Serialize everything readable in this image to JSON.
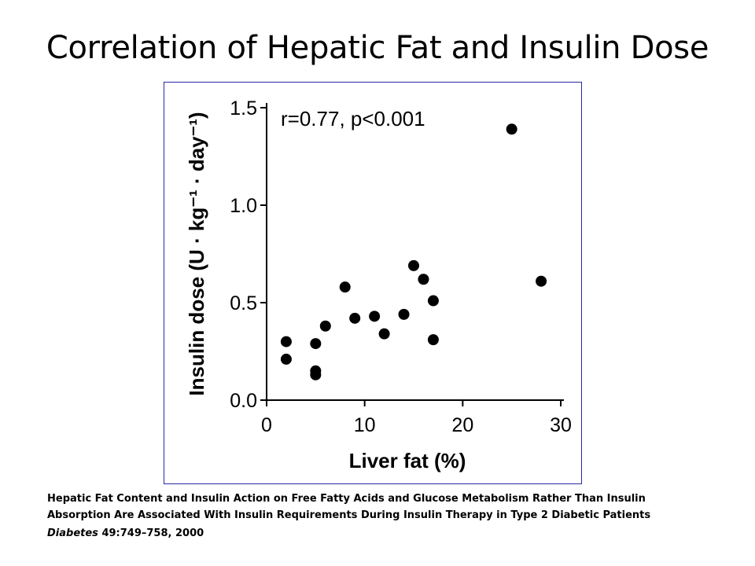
{
  "slide": {
    "title": "Correlation of Hepatic Fat and Insulin Dose"
  },
  "caption": {
    "line1": "Hepatic Fat Content and Insulin Action on Free Fatty Acids and Glucose Metabolism Rather Than Insulin",
    "line2": "Absorption Are Associated With Insulin Requirements During Insulin Therapy in Type 2 Diabetic Patients",
    "journal": "Diabetes",
    "reference": " 49:749–758, 2000"
  },
  "chart_data": {
    "type": "scatter",
    "xlabel": "Liver fat (%)",
    "ylabel": "Insulin dose (U · kg⁻¹ · day⁻¹)",
    "annotation": "r=0.77, p<0.001",
    "xlim": [
      0,
      30
    ],
    "ylim": [
      0,
      1.5
    ],
    "xticks": [
      0,
      10,
      20,
      30
    ],
    "xtick_labels": [
      "0",
      "10",
      "20",
      "30"
    ],
    "yticks": [
      0,
      0.5,
      1.0,
      1.5
    ],
    "ytick_labels": [
      "0.0",
      "0.5",
      "1.0",
      "1.5"
    ],
    "grid": false,
    "points": [
      {
        "x": 2,
        "y": 0.3
      },
      {
        "x": 2,
        "y": 0.21
      },
      {
        "x": 5,
        "y": 0.29
      },
      {
        "x": 5,
        "y": 0.15
      },
      {
        "x": 5,
        "y": 0.13
      },
      {
        "x": 6,
        "y": 0.38
      },
      {
        "x": 8,
        "y": 0.58
      },
      {
        "x": 9,
        "y": 0.42
      },
      {
        "x": 11,
        "y": 0.43
      },
      {
        "x": 12,
        "y": 0.34
      },
      {
        "x": 14,
        "y": 0.44
      },
      {
        "x": 15,
        "y": 0.69
      },
      {
        "x": 16,
        "y": 0.62
      },
      {
        "x": 17,
        "y": 0.51
      },
      {
        "x": 17,
        "y": 0.31
      },
      {
        "x": 25,
        "y": 1.39
      },
      {
        "x": 28,
        "y": 0.61
      }
    ]
  }
}
